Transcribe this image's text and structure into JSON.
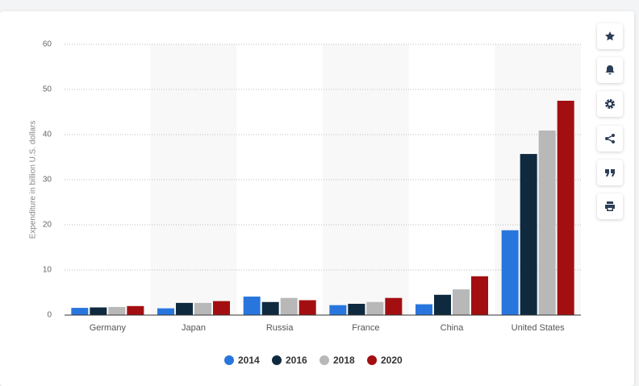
{
  "chart_data": {
    "type": "bar",
    "y_label": "Expenditure in billion U.S. dollars",
    "categories": [
      "Germany",
      "Japan",
      "Russia",
      "France",
      "China",
      "United States"
    ],
    "series": [
      {
        "name": "2014",
        "color": "#2876dd",
        "values": [
          1.6,
          1.5,
          4.1,
          2.2,
          2.4,
          18.8
        ]
      },
      {
        "name": "2016",
        "color": "#0f2a3f",
        "values": [
          1.7,
          2.7,
          2.9,
          2.5,
          4.5,
          35.7
        ]
      },
      {
        "name": "2018",
        "color": "#b8b8b8",
        "values": [
          1.8,
          2.7,
          3.8,
          2.9,
          5.7,
          40.9
        ]
      },
      {
        "name": "2020",
        "color": "#a30f11",
        "values": [
          2.0,
          3.1,
          3.3,
          3.8,
          8.6,
          47.5
        ]
      }
    ],
    "ylim": [
      0,
      60
    ],
    "yticks": [
      0,
      10,
      20,
      30,
      40,
      50,
      60
    ],
    "grid": true
  }
}
